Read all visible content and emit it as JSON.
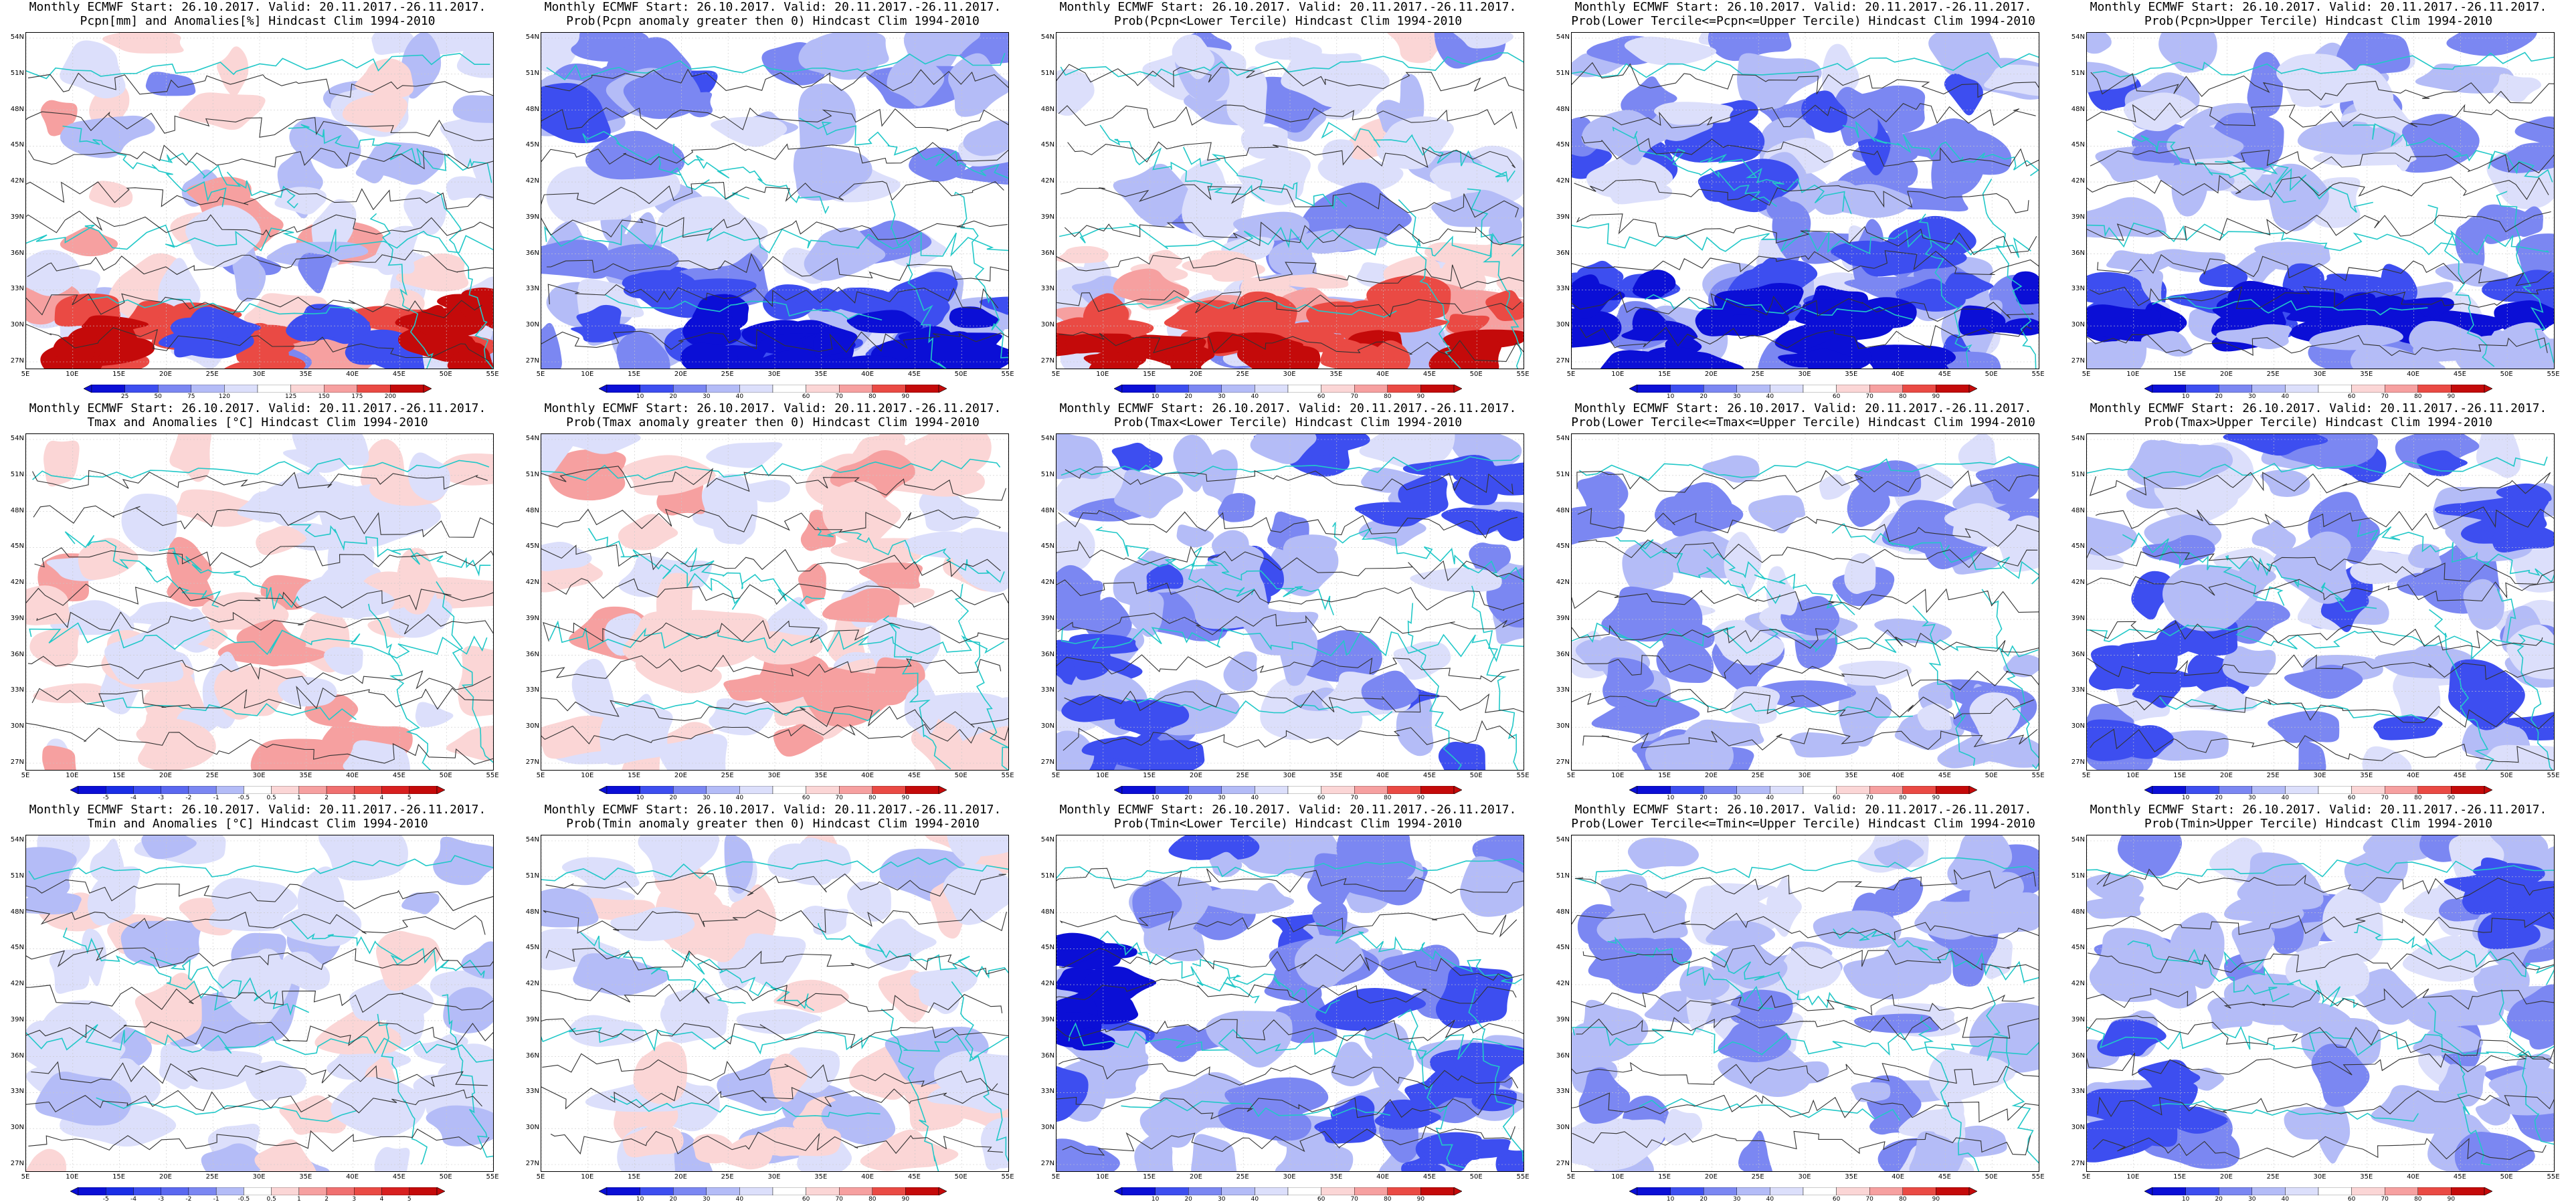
{
  "panels": [
    {
      "row": 0,
      "col": 0,
      "title1": "Monthly ECMWF Start: 26.10.2017. Valid: 20.11.2017.-26.11.2017.",
      "title2": "Pcpn[mm] and Anomalies[%] Hindcast Clim 1994-2010",
      "scheme": "pcpn_anom",
      "colorbar": [
        "25",
        "50",
        "75",
        "120",
        "125",
        "150",
        "175",
        "200"
      ]
    },
    {
      "row": 0,
      "col": 1,
      "title1": "Monthly ECMWF Start: 26.10.2017. Valid: 20.11.2017.-26.11.2017.",
      "title2": "Prob(Pcpn anomaly greater then 0) Hindcast Clim 1994-2010",
      "scheme": "prob_gt0",
      "colorbar": [
        "10",
        "20",
        "30",
        "40",
        "60",
        "70",
        "80",
        "90"
      ]
    },
    {
      "row": 0,
      "col": 2,
      "title1": "Monthly ECMWF Start: 26.10.2017. Valid: 20.11.2017.-26.11.2017.",
      "title2": "Prob(Pcpn<Lower Tercile) Hindcast Clim 1994-2010",
      "scheme": "lower_red",
      "colorbar": [
        "10",
        "20",
        "30",
        "40",
        "60",
        "70",
        "80",
        "90"
      ]
    },
    {
      "row": 0,
      "col": 3,
      "title1": "Monthly ECMWF Start: 26.10.2017. Valid: 20.11.2017.-26.11.2017.",
      "title2": "Prob(Lower Tercile<=Pcpn<=Upper Tercile) Hindcast Clim 1994-2010",
      "scheme": "mid_blue",
      "colorbar": [
        "10",
        "20",
        "30",
        "40",
        "60",
        "70",
        "80",
        "90"
      ]
    },
    {
      "row": 0,
      "col": 4,
      "title1": "Monthly ECMWF Start: 26.10.2017. Valid: 20.11.2017.-26.11.2017.",
      "title2": "Prob(Pcpn>Upper Tercile) Hindcast Clim 1994-2010",
      "scheme": "upper_blue",
      "colorbar": [
        "10",
        "20",
        "30",
        "40",
        "60",
        "70",
        "80",
        "90"
      ]
    },
    {
      "row": 1,
      "col": 0,
      "title1": "Monthly ECMWF Start: 26.10.2017. Valid: 20.11.2017.-26.11.2017.",
      "title2": "Tmax and Anomalies [°C] Hindcast Clim 1994-2010",
      "scheme": "t_anom",
      "colorbar": [
        "-5",
        "-4",
        "-3",
        "-2",
        "-1",
        "-0.5",
        "0.5",
        "1",
        "2",
        "3",
        "4",
        "5"
      ]
    },
    {
      "row": 1,
      "col": 1,
      "title1": "Monthly ECMWF Start: 26.10.2017. Valid: 20.11.2017.-26.11.2017.",
      "title2": "Prob(Tmax anomaly greater then 0) Hindcast Clim 1994-2010",
      "scheme": "t_prob_gt0",
      "colorbar": [
        "10",
        "20",
        "30",
        "40",
        "60",
        "70",
        "80",
        "90"
      ]
    },
    {
      "row": 1,
      "col": 2,
      "title1": "Monthly ECMWF Start: 26.10.2017. Valid: 20.11.2017.-26.11.2017.",
      "title2": "Prob(Tmax<Lower Tercile) Hindcast Clim 1994-2010",
      "scheme": "t_lower",
      "colorbar": [
        "10",
        "20",
        "30",
        "40",
        "60",
        "70",
        "80",
        "90"
      ]
    },
    {
      "row": 1,
      "col": 3,
      "title1": "Monthly ECMWF Start: 26.10.2017. Valid: 20.11.2017.-26.11.2017.",
      "title2": "Prob(Lower Tercile<=Tmax<=Upper Tercile) Hindcast Clim 1994-2010",
      "scheme": "t_mid",
      "colorbar": [
        "10",
        "20",
        "30",
        "40",
        "60",
        "70",
        "80",
        "90"
      ]
    },
    {
      "row": 1,
      "col": 4,
      "title1": "Monthly ECMWF Start: 26.10.2017. Valid: 20.11.2017.-26.11.2017.",
      "title2": "Prob(Tmax>Upper Tercile) Hindcast Clim 1994-2010",
      "scheme": "t_upper",
      "colorbar": [
        "10",
        "20",
        "30",
        "40",
        "60",
        "70",
        "80",
        "90"
      ]
    },
    {
      "row": 2,
      "col": 0,
      "title1": "Monthly ECMWF Start: 26.10.2017. Valid: 20.11.2017.-26.11.2017.",
      "title2": "Tmin and Anomalies [°C] Hindcast Clim 1994-2010",
      "scheme": "tmin_anom",
      "colorbar": [
        "-5",
        "-4",
        "-3",
        "-2",
        "-1",
        "-0.5",
        "0.5",
        "1",
        "2",
        "3",
        "4",
        "5"
      ]
    },
    {
      "row": 2,
      "col": 1,
      "title1": "Monthly ECMWF Start: 26.10.2017. Valid: 20.11.2017.-26.11.2017.",
      "title2": "Prob(Tmin anomaly greater then 0) Hindcast Clim 1994-2010",
      "scheme": "tmin_prob_gt0",
      "colorbar": [
        "10",
        "20",
        "30",
        "40",
        "60",
        "70",
        "80",
        "90"
      ]
    },
    {
      "row": 2,
      "col": 2,
      "title1": "Monthly ECMWF Start: 26.10.2017. Valid: 20.11.2017.-26.11.2017.",
      "title2": "Prob(Tmin<Lower Tercile) Hindcast Clim 1994-2010",
      "scheme": "tmin_lower",
      "colorbar": [
        "10",
        "20",
        "30",
        "40",
        "60",
        "70",
        "80",
        "90"
      ]
    },
    {
      "row": 2,
      "col": 3,
      "title1": "Monthly ECMWF Start: 26.10.2017. Valid: 20.11.2017.-26.11.2017.",
      "title2": "Prob(Lower Tercile<=Tmin<=Upper Tercile) Hindcast Clim 1994-2010",
      "scheme": "tmin_mid",
      "colorbar": [
        "10",
        "20",
        "30",
        "40",
        "60",
        "70",
        "80",
        "90"
      ]
    },
    {
      "row": 2,
      "col": 4,
      "title1": "Monthly ECMWF Start: 26.10.2017. Valid: 20.11.2017.-26.11.2017.",
      "title2": "Prob(Tmin>Upper Tercile) Hindcast Clim 1994-2010",
      "scheme": "tmin_upper",
      "colorbar": [
        "10",
        "20",
        "30",
        "40",
        "60",
        "70",
        "80",
        "90"
      ]
    }
  ],
  "lat_labels": [
    "54N",
    "51N",
    "48N",
    "45N",
    "42N",
    "39N",
    "36N",
    "33N",
    "30N",
    "27N"
  ],
  "lon_labels": [
    "5E",
    "10E",
    "15E",
    "20E",
    "25E",
    "30E",
    "35E",
    "40E",
    "45E",
    "50E",
    "55E"
  ],
  "colors": {
    "deep_blue": "#0b0fd6",
    "blue": "#3d4ef0",
    "mid_blue": "#7b87f2",
    "light_blue": "#b4bcf7",
    "pale_blue": "#dcdffb",
    "pale_red": "#fbd6d6",
    "light_red": "#f6a0a0",
    "red": "#ea4a44",
    "deep_red": "#c40a0a",
    "coast": "#22c8c8",
    "contour": "#333333"
  }
}
